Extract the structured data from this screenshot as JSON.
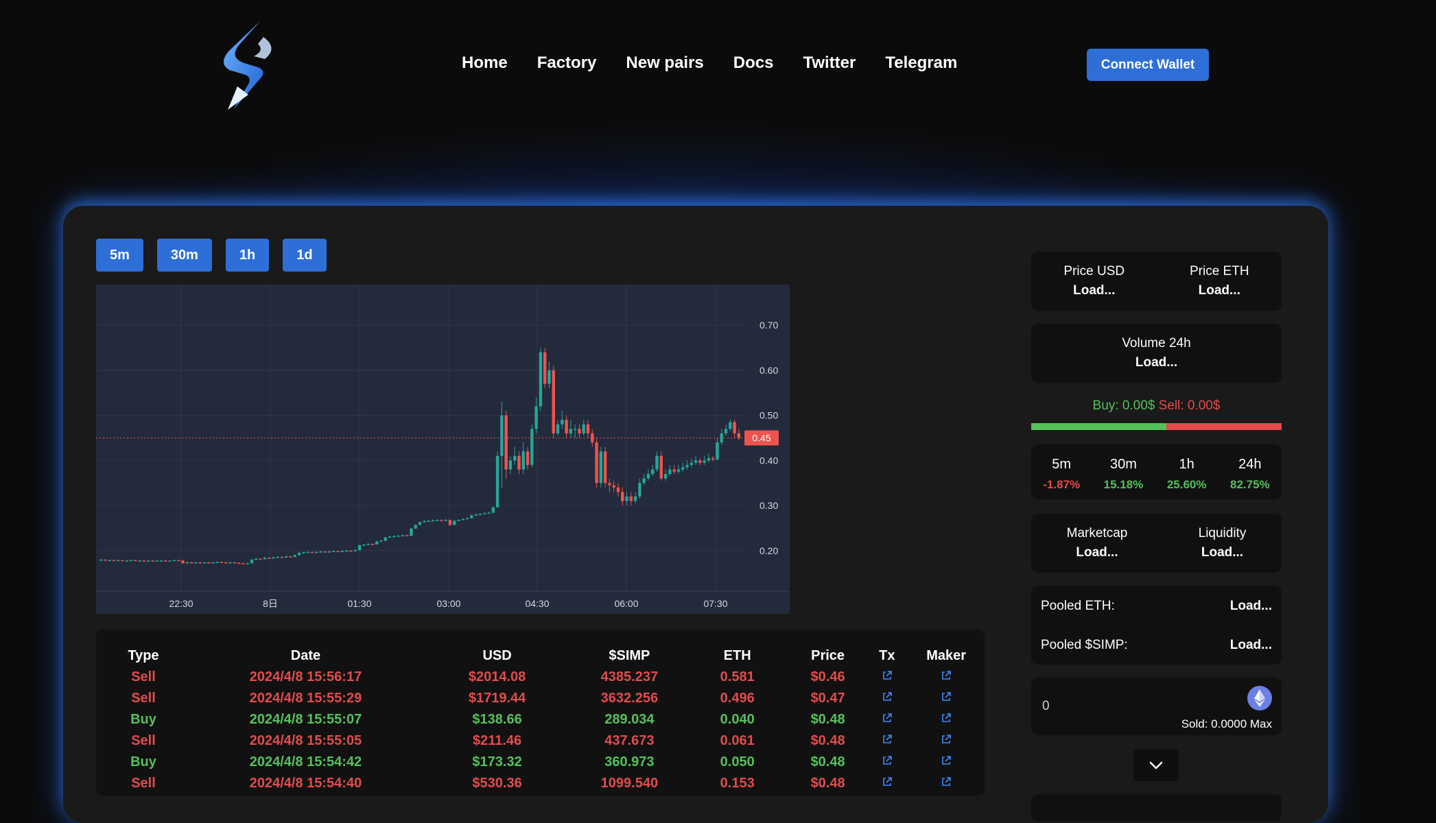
{
  "nav": {
    "items": [
      "Home",
      "Factory",
      "New pairs",
      "Docs",
      "Twitter",
      "Telegram"
    ],
    "connect_label": "Connect Wallet"
  },
  "timeframes": [
    "5m",
    "30m",
    "1h",
    "1d"
  ],
  "chart_data": {
    "type": "candlestick",
    "x_ticks": [
      "22:30",
      "8日",
      "01:30",
      "03:00",
      "04:30",
      "06:00",
      "07:30"
    ],
    "y_ticks": [
      "0.70",
      "0.60",
      "0.50",
      "0.40",
      "0.30",
      "0.20"
    ],
    "ylim": [
      0.11,
      0.79
    ],
    "last_price_label": "0.45",
    "last_price": 0.45,
    "grid": true,
    "up_color": "#26a69a",
    "down_color": "#ef5350",
    "candles": [
      [
        0.18,
        0.18,
        0.181,
        0.178
      ],
      [
        0.18,
        0.179,
        0.181,
        0.178
      ],
      [
        0.179,
        0.179,
        0.18,
        0.178
      ],
      [
        0.179,
        0.178,
        0.18,
        0.177
      ],
      [
        0.178,
        0.179,
        0.18,
        0.177
      ],
      [
        0.179,
        0.178,
        0.18,
        0.177
      ],
      [
        0.178,
        0.178,
        0.179,
        0.177
      ],
      [
        0.178,
        0.179,
        0.18,
        0.177
      ],
      [
        0.179,
        0.178,
        0.18,
        0.177
      ],
      [
        0.178,
        0.178,
        0.179,
        0.177
      ],
      [
        0.178,
        0.177,
        0.179,
        0.176
      ],
      [
        0.177,
        0.178,
        0.179,
        0.176
      ],
      [
        0.178,
        0.177,
        0.179,
        0.176
      ],
      [
        0.177,
        0.178,
        0.179,
        0.176
      ],
      [
        0.178,
        0.178,
        0.179,
        0.177
      ],
      [
        0.178,
        0.177,
        0.179,
        0.176
      ],
      [
        0.177,
        0.178,
        0.179,
        0.176
      ],
      [
        0.178,
        0.179,
        0.18,
        0.177
      ],
      [
        0.179,
        0.178,
        0.18,
        0.177
      ],
      [
        0.178,
        0.172,
        0.179,
        0.171
      ],
      [
        0.172,
        0.174,
        0.176,
        0.171
      ],
      [
        0.174,
        0.173,
        0.175,
        0.172
      ],
      [
        0.173,
        0.174,
        0.175,
        0.172
      ],
      [
        0.174,
        0.173,
        0.175,
        0.172
      ],
      [
        0.173,
        0.174,
        0.175,
        0.172
      ],
      [
        0.174,
        0.173,
        0.175,
        0.172
      ],
      [
        0.173,
        0.174,
        0.175,
        0.172
      ],
      [
        0.174,
        0.175,
        0.176,
        0.173
      ],
      [
        0.175,
        0.174,
        0.176,
        0.173
      ],
      [
        0.174,
        0.173,
        0.175,
        0.172
      ],
      [
        0.173,
        0.174,
        0.175,
        0.172
      ],
      [
        0.174,
        0.173,
        0.175,
        0.172
      ],
      [
        0.173,
        0.172,
        0.174,
        0.171
      ],
      [
        0.172,
        0.171,
        0.173,
        0.17
      ],
      [
        0.171,
        0.172,
        0.174,
        0.17
      ],
      [
        0.172,
        0.18,
        0.181,
        0.171
      ],
      [
        0.18,
        0.182,
        0.184,
        0.179
      ],
      [
        0.182,
        0.181,
        0.183,
        0.18
      ],
      [
        0.181,
        0.184,
        0.186,
        0.18
      ],
      [
        0.184,
        0.183,
        0.185,
        0.182
      ],
      [
        0.183,
        0.185,
        0.187,
        0.182
      ],
      [
        0.185,
        0.186,
        0.188,
        0.184
      ],
      [
        0.186,
        0.185,
        0.187,
        0.184
      ],
      [
        0.185,
        0.187,
        0.189,
        0.184
      ],
      [
        0.187,
        0.186,
        0.188,
        0.185
      ],
      [
        0.186,
        0.19,
        0.192,
        0.185
      ],
      [
        0.19,
        0.195,
        0.197,
        0.189
      ],
      [
        0.195,
        0.196,
        0.198,
        0.194
      ],
      [
        0.196,
        0.197,
        0.199,
        0.195
      ],
      [
        0.197,
        0.196,
        0.198,
        0.195
      ],
      [
        0.196,
        0.197,
        0.199,
        0.195
      ],
      [
        0.197,
        0.198,
        0.2,
        0.196
      ],
      [
        0.198,
        0.197,
        0.199,
        0.196
      ],
      [
        0.197,
        0.198,
        0.2,
        0.196
      ],
      [
        0.198,
        0.199,
        0.201,
        0.197
      ],
      [
        0.199,
        0.198,
        0.2,
        0.197
      ],
      [
        0.198,
        0.199,
        0.201,
        0.197
      ],
      [
        0.199,
        0.2,
        0.202,
        0.198
      ],
      [
        0.2,
        0.199,
        0.201,
        0.198
      ],
      [
        0.199,
        0.201,
        0.203,
        0.198
      ],
      [
        0.201,
        0.212,
        0.214,
        0.2
      ],
      [
        0.212,
        0.213,
        0.215,
        0.211
      ],
      [
        0.213,
        0.215,
        0.217,
        0.212
      ],
      [
        0.215,
        0.214,
        0.216,
        0.213
      ],
      [
        0.214,
        0.22,
        0.222,
        0.213
      ],
      [
        0.22,
        0.222,
        0.224,
        0.219
      ],
      [
        0.222,
        0.229,
        0.231,
        0.221
      ],
      [
        0.229,
        0.231,
        0.233,
        0.228
      ],
      [
        0.231,
        0.232,
        0.234,
        0.23
      ],
      [
        0.232,
        0.233,
        0.235,
        0.231
      ],
      [
        0.233,
        0.234,
        0.236,
        0.232
      ],
      [
        0.234,
        0.233,
        0.235,
        0.232
      ],
      [
        0.233,
        0.249,
        0.251,
        0.232
      ],
      [
        0.249,
        0.257,
        0.259,
        0.248
      ],
      [
        0.257,
        0.263,
        0.265,
        0.256
      ],
      [
        0.263,
        0.265,
        0.268,
        0.262
      ],
      [
        0.265,
        0.266,
        0.268,
        0.264
      ],
      [
        0.266,
        0.267,
        0.269,
        0.265
      ],
      [
        0.267,
        0.268,
        0.27,
        0.266
      ],
      [
        0.268,
        0.267,
        0.269,
        0.266
      ],
      [
        0.267,
        0.268,
        0.27,
        0.266
      ],
      [
        0.268,
        0.257,
        0.269,
        0.255
      ],
      [
        0.257,
        0.266,
        0.268,
        0.256
      ],
      [
        0.266,
        0.268,
        0.27,
        0.265
      ],
      [
        0.268,
        0.27,
        0.272,
        0.267
      ],
      [
        0.27,
        0.272,
        0.274,
        0.269
      ],
      [
        0.272,
        0.278,
        0.28,
        0.271
      ],
      [
        0.278,
        0.28,
        0.282,
        0.277
      ],
      [
        0.28,
        0.281,
        0.283,
        0.279
      ],
      [
        0.281,
        0.283,
        0.285,
        0.28
      ],
      [
        0.283,
        0.284,
        0.286,
        0.282
      ],
      [
        0.284,
        0.296,
        0.298,
        0.283
      ],
      [
        0.296,
        0.41,
        0.42,
        0.295
      ],
      [
        0.41,
        0.5,
        0.53,
        0.34
      ],
      [
        0.5,
        0.38,
        0.51,
        0.36
      ],
      [
        0.38,
        0.4,
        0.41,
        0.37
      ],
      [
        0.4,
        0.41,
        0.43,
        0.39
      ],
      [
        0.41,
        0.38,
        0.42,
        0.37
      ],
      [
        0.38,
        0.42,
        0.44,
        0.37
      ],
      [
        0.42,
        0.39,
        0.43,
        0.38
      ],
      [
        0.39,
        0.47,
        0.48,
        0.385
      ],
      [
        0.47,
        0.52,
        0.54,
        0.46
      ],
      [
        0.52,
        0.64,
        0.65,
        0.51
      ],
      [
        0.64,
        0.57,
        0.65,
        0.56
      ],
      [
        0.57,
        0.6,
        0.62,
        0.56
      ],
      [
        0.6,
        0.46,
        0.61,
        0.45
      ],
      [
        0.46,
        0.48,
        0.49,
        0.455
      ],
      [
        0.48,
        0.49,
        0.51,
        0.47
      ],
      [
        0.49,
        0.46,
        0.5,
        0.45
      ],
      [
        0.46,
        0.47,
        0.49,
        0.45
      ],
      [
        0.47,
        0.47,
        0.48,
        0.45
      ],
      [
        0.47,
        0.46,
        0.48,
        0.45
      ],
      [
        0.46,
        0.48,
        0.49,
        0.455
      ],
      [
        0.48,
        0.46,
        0.49,
        0.45
      ],
      [
        0.46,
        0.44,
        0.47,
        0.43
      ],
      [
        0.44,
        0.35,
        0.45,
        0.34
      ],
      [
        0.35,
        0.42,
        0.43,
        0.34
      ],
      [
        0.42,
        0.35,
        0.43,
        0.34
      ],
      [
        0.35,
        0.345,
        0.36,
        0.33
      ],
      [
        0.345,
        0.34,
        0.355,
        0.33
      ],
      [
        0.34,
        0.33,
        0.35,
        0.32
      ],
      [
        0.33,
        0.31,
        0.34,
        0.3
      ],
      [
        0.31,
        0.32,
        0.33,
        0.3
      ],
      [
        0.32,
        0.31,
        0.33,
        0.3
      ],
      [
        0.31,
        0.32,
        0.33,
        0.305
      ],
      [
        0.32,
        0.35,
        0.36,
        0.315
      ],
      [
        0.35,
        0.36,
        0.37,
        0.345
      ],
      [
        0.36,
        0.37,
        0.38,
        0.355
      ],
      [
        0.37,
        0.38,
        0.39,
        0.365
      ],
      [
        0.38,
        0.41,
        0.42,
        0.375
      ],
      [
        0.41,
        0.36,
        0.42,
        0.355
      ],
      [
        0.36,
        0.37,
        0.38,
        0.355
      ],
      [
        0.37,
        0.38,
        0.39,
        0.365
      ],
      [
        0.38,
        0.375,
        0.39,
        0.37
      ],
      [
        0.375,
        0.38,
        0.39,
        0.37
      ],
      [
        0.38,
        0.385,
        0.395,
        0.375
      ],
      [
        0.385,
        0.39,
        0.4,
        0.38
      ],
      [
        0.39,
        0.395,
        0.405,
        0.385
      ],
      [
        0.395,
        0.4,
        0.41,
        0.39
      ],
      [
        0.4,
        0.395,
        0.405,
        0.39
      ],
      [
        0.395,
        0.4,
        0.41,
        0.39
      ],
      [
        0.4,
        0.405,
        0.415,
        0.395
      ],
      [
        0.405,
        0.402,
        0.41,
        0.398
      ],
      [
        0.402,
        0.44,
        0.45,
        0.4
      ],
      [
        0.44,
        0.46,
        0.47,
        0.435
      ],
      [
        0.46,
        0.47,
        0.48,
        0.455
      ],
      [
        0.47,
        0.485,
        0.49,
        0.465
      ],
      [
        0.485,
        0.46,
        0.49,
        0.45
      ],
      [
        0.46,
        0.45,
        0.47,
        0.445
      ]
    ]
  },
  "trades": {
    "headers": [
      "Type",
      "Date",
      "USD",
      "$SIMP",
      "ETH",
      "Price",
      "Tx",
      "Maker"
    ],
    "rows": [
      {
        "type": "Sell",
        "date": "2024/4/8 15:56:17",
        "usd": "$2014.08",
        "simp": "4385.237",
        "eth": "0.581",
        "price": "$0.46"
      },
      {
        "type": "Sell",
        "date": "2024/4/8 15:55:29",
        "usd": "$1719.44",
        "simp": "3632.256",
        "eth": "0.496",
        "price": "$0.47"
      },
      {
        "type": "Buy",
        "date": "2024/4/8 15:55:07",
        "usd": "$138.66",
        "simp": "289.034",
        "eth": "0.040",
        "price": "$0.48"
      },
      {
        "type": "Sell",
        "date": "2024/4/8 15:55:05",
        "usd": "$211.46",
        "simp": "437.673",
        "eth": "0.061",
        "price": "$0.48"
      },
      {
        "type": "Buy",
        "date": "2024/4/8 15:54:42",
        "usd": "$173.32",
        "simp": "360.973",
        "eth": "0.050",
        "price": "$0.48"
      },
      {
        "type": "Sell",
        "date": "2024/4/8 15:54:40",
        "usd": "$530.36",
        "simp": "1099.540",
        "eth": "0.153",
        "price": "$0.48"
      }
    ]
  },
  "stats": {
    "price_usd_label": "Price USD",
    "price_usd_value": "Load...",
    "price_eth_label": "Price ETH",
    "price_eth_value": "Load...",
    "volume_label": "Volume 24h",
    "volume_value": "Load...",
    "buy_text": "Buy: 0.00$",
    "sell_text": "Sell: 0.00$",
    "buy_ratio": 0.54,
    "changes": [
      {
        "label": "5m",
        "value": "-1.87%",
        "dir": "down"
      },
      {
        "label": "30m",
        "value": "15.18%",
        "dir": "up"
      },
      {
        "label": "1h",
        "value": "25.60%",
        "dir": "up"
      },
      {
        "label": "24h",
        "value": "82.75%",
        "dir": "up"
      }
    ],
    "marketcap_label": "Marketcap",
    "marketcap_value": "Load...",
    "liquidity_label": "Liquidity",
    "liquidity_value": "Load...",
    "pooled_eth_label": "Pooled ETH:",
    "pooled_eth_value": "Load...",
    "pooled_simp_label": "Pooled $SIMP:",
    "pooled_simp_value": "Load..."
  },
  "swap": {
    "input_value": "0",
    "sold_text": "Sold: 0.0000 Max"
  },
  "colors": {
    "accent": "#2d6fd6",
    "buy": "#55c15b",
    "sell": "#e24c4c"
  },
  "icons": {
    "logo": "lightning-s-logo",
    "eth": "ethereum-icon",
    "link": "external-link-icon",
    "chevron": "chevron-down-icon"
  }
}
